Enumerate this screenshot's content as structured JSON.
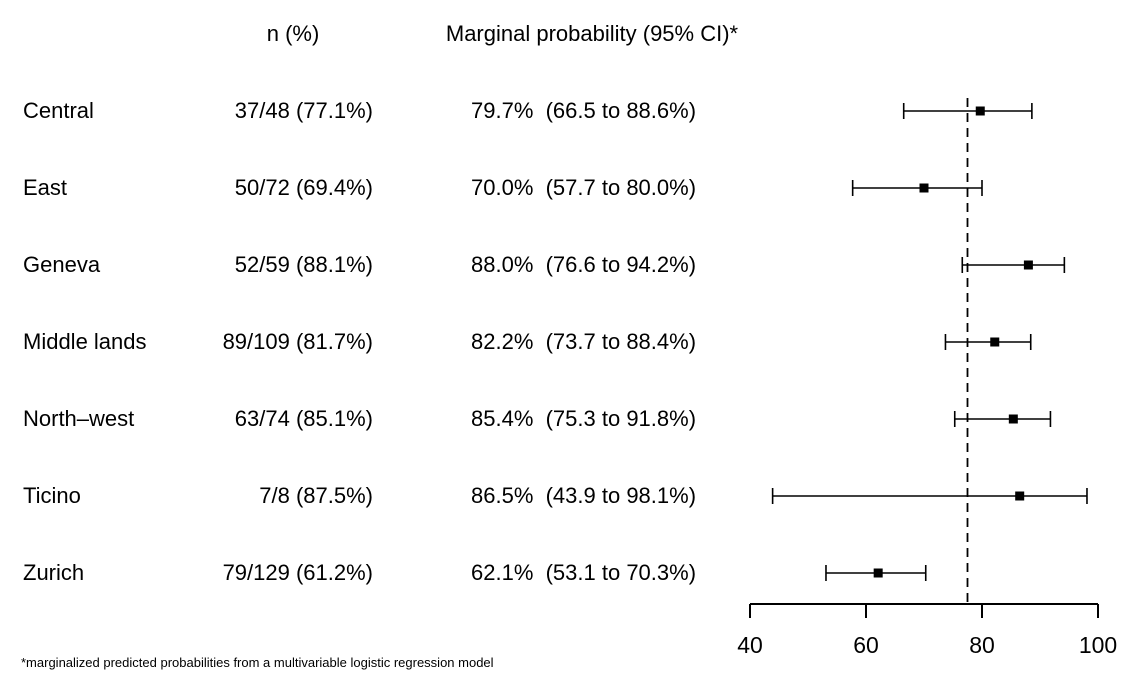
{
  "colors": {
    "foreground": "#000000",
    "background": "#ffffff"
  },
  "chart_data": {
    "type": "forest",
    "title": "",
    "xlabel": "",
    "ylabel": "",
    "columns": {
      "n_header": "n (%)",
      "prob_header": "Marginal probability (95% CI)*"
    },
    "rows": [
      {
        "label": "Central",
        "n_pct": "37/48 (77.1%)",
        "estimate": 79.7,
        "ci_low": 66.5,
        "ci_high": 88.6,
        "prob_text": "79.7%  (66.5 to 88.6%)"
      },
      {
        "label": "East",
        "n_pct": "50/72 (69.4%)",
        "estimate": 70.0,
        "ci_low": 57.7,
        "ci_high": 80.0,
        "prob_text": "70.0%  (57.7 to 80.0%)"
      },
      {
        "label": "Geneva",
        "n_pct": "52/59 (88.1%)",
        "estimate": 88.0,
        "ci_low": 76.6,
        "ci_high": 94.2,
        "prob_text": "88.0%  (76.6 to 94.2%)"
      },
      {
        "label": "Middle lands",
        "n_pct": "89/109 (81.7%)",
        "estimate": 82.2,
        "ci_low": 73.7,
        "ci_high": 88.4,
        "prob_text": "82.2%  (73.7 to 88.4%)"
      },
      {
        "label": "North–west",
        "n_pct": "63/74 (85.1%)",
        "estimate": 85.4,
        "ci_low": 75.3,
        "ci_high": 91.8,
        "prob_text": "85.4%  (75.3 to 91.8%)"
      },
      {
        "label": "Ticino",
        "n_pct": "7/8 (87.5%)",
        "estimate": 86.5,
        "ci_low": 43.9,
        "ci_high": 98.1,
        "prob_text": "86.5%  (43.9 to 98.1%)"
      },
      {
        "label": "Zurich",
        "n_pct": "79/129 (61.2%)",
        "estimate": 62.1,
        "ci_low": 53.1,
        "ci_high": 70.3,
        "prob_text": "62.1%  (53.1 to 70.3%)"
      }
    ],
    "xaxis": {
      "range": [
        40,
        100
      ],
      "ticks": [
        40,
        60,
        80,
        100
      ]
    },
    "reference_line": 77.5,
    "legend": "none",
    "grid": false,
    "footnote": "*marginalized predicted probabilities from a multivariable logistic regression model"
  }
}
